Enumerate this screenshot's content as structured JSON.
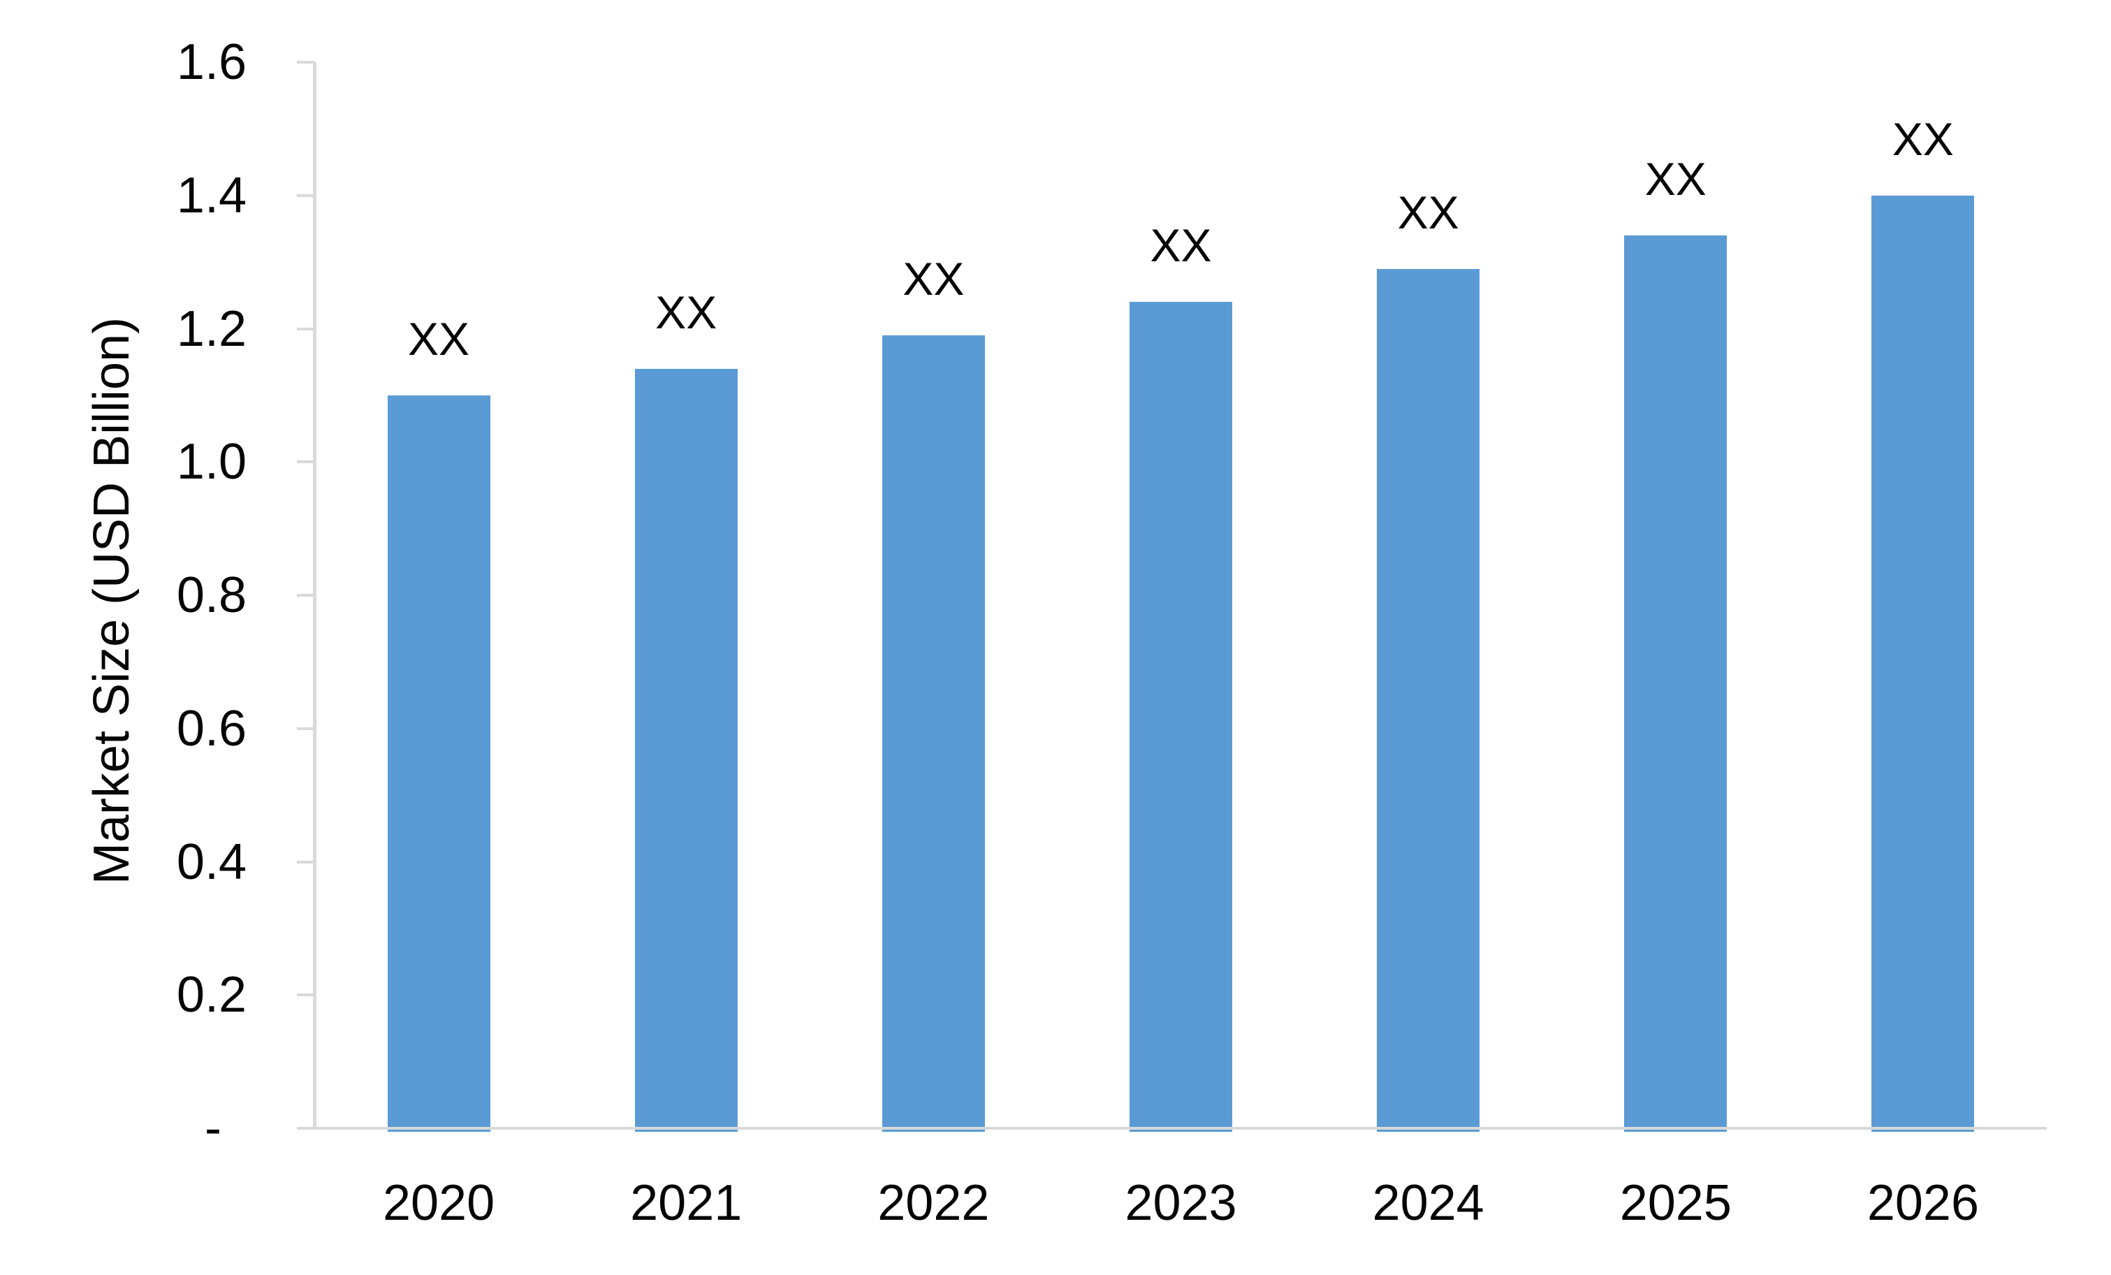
{
  "chart_data": {
    "type": "bar",
    "title": "",
    "xlabel": "",
    "ylabel": "Market Size (USD Billion)",
    "categories": [
      "2020",
      "2021",
      "2022",
      "2023",
      "2024",
      "2025",
      "2026"
    ],
    "values": [
      1.1,
      1.14,
      1.19,
      1.24,
      1.29,
      1.34,
      1.4
    ],
    "bar_labels": [
      "XX",
      "XX",
      "XX",
      "XX",
      "XX",
      "XX",
      "XX"
    ],
    "y_ticks": [
      "1.6",
      "1.4",
      "1.2",
      "1.0",
      "0.8",
      "0.6",
      "0.4",
      "0.2",
      "-"
    ],
    "ylim": [
      0,
      1.6
    ],
    "y_tick_step": 0.2,
    "grid": false,
    "legend_position": "none",
    "bar_color": "#5B9BD5",
    "axis_line_color": "#D9D9D9",
    "text_color": "#050505",
    "background_color": "#FFFFFF"
  }
}
